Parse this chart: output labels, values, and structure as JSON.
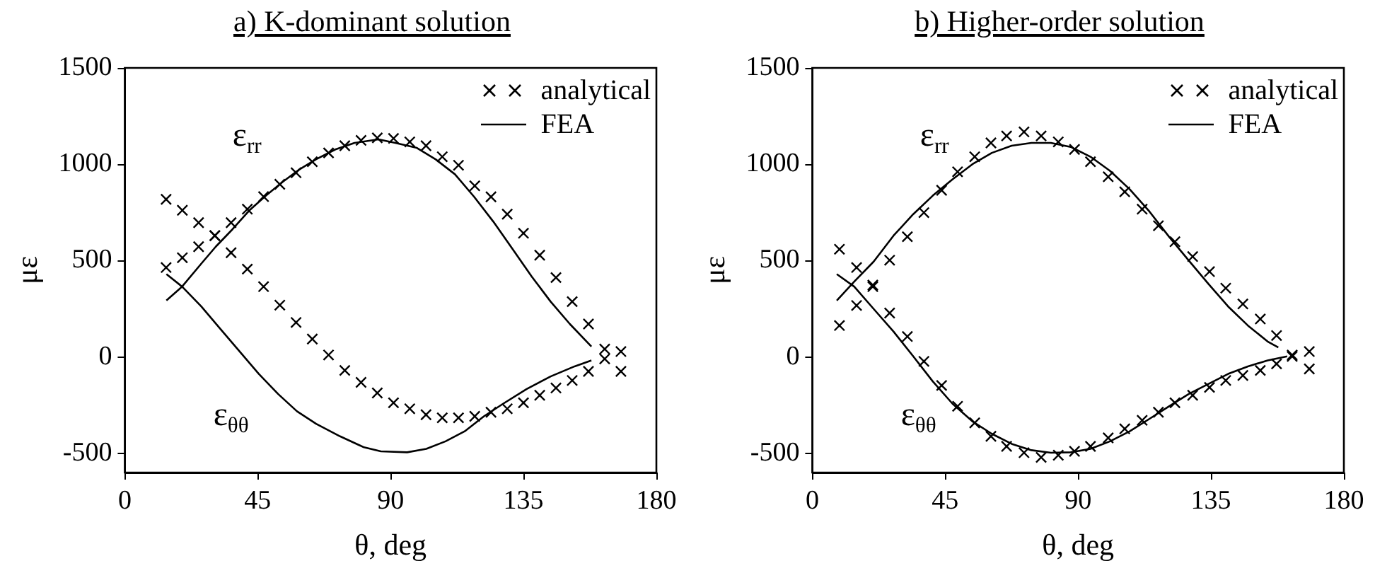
{
  "chart_data": [
    {
      "type": "line",
      "title": "a)  K-dominant solution",
      "xlabel": "θ, deg",
      "ylabel": "με",
      "xlim": [
        0,
        180
      ],
      "ylim": [
        -600,
        1500
      ],
      "xticks": [
        0,
        45,
        90,
        135,
        180
      ],
      "yticks": [
        -500,
        0,
        500,
        1000,
        1500
      ],
      "grid": false,
      "legend": "top right",
      "annotations": [
        "ε$_{rr}$",
        "ε$_{θθ}$"
      ],
      "series": [
        {
          "name": "analytical",
          "type": "scatter",
          "marker": "cross",
          "color": "#000000",
          "x": [
            14,
            19.5,
            25,
            30.5,
            36,
            41.5,
            47,
            52.5,
            58,
            63.5,
            69,
            74.5,
            80,
            85.5,
            91,
            96.5,
            102,
            107.5,
            113,
            118.5,
            124,
            129.5,
            135,
            140.5,
            146,
            151.5,
            157,
            162.5,
            168
          ],
          "values": [
            464,
            515,
            572,
            629,
            697,
            767,
            832,
            896,
            956,
            1013,
            1059,
            1096,
            1124,
            1137,
            1134,
            1116,
            1096,
            1039,
            995,
            888,
            831,
            741,
            642,
            528,
            412,
            287,
            171,
            41,
            28
          ]
        },
        {
          "type": "scatter",
          "marker": "cross",
          "color": "#000000",
          "x": [
            14,
            19.5,
            25,
            30.5,
            36,
            41.5,
            47,
            52.5,
            58,
            63.5,
            69,
            74.5,
            80,
            85.5,
            91,
            96.5,
            102,
            107.5,
            113,
            118.5,
            124,
            129.5,
            135,
            140.5,
            146,
            151.5,
            157,
            162.5,
            168
          ],
          "values": [
            818,
            761,
            697,
            630,
            541,
            456,
            365,
            269,
            179,
            93,
            10,
            -70,
            -132,
            -187,
            -238,
            -269,
            -300,
            -316,
            -316,
            -308,
            -287,
            -269,
            -238,
            -199,
            -161,
            -122,
            -75,
            -10,
            -75
          ]
        },
        {
          "name": "FEA",
          "marker": "none",
          "line_style": "solid",
          "color": "#000000",
          "x": [
            14.1,
            19.4,
            25.9,
            30.8,
            36.5,
            42.1,
            47.8,
            53.5,
            59.2,
            64.8,
            71.3,
            77.8,
            85.9,
            91.6,
            98.9,
            105.3,
            111.8,
            118.3,
            124.8,
            131.3,
            137.8,
            144.2,
            150.7,
            158
          ],
          "values": [
            293,
            365,
            484,
            572,
            663,
            759,
            837,
            909,
            974,
            1026,
            1077,
            1111,
            1129,
            1111,
            1085,
            1025,
            948,
            831,
            702,
            560,
            417,
            287,
            171,
            54
          ]
        },
        {
          "marker": "none",
          "line_style": "solid",
          "color": "#000000",
          "x": [
            14.1,
            19.4,
            25.9,
            32.4,
            38.9,
            45.4,
            51.9,
            58.3,
            64.8,
            72.9,
            81,
            86.7,
            95.6,
            102.1,
            108.6,
            115.1,
            121.6,
            128,
            136.1,
            144.2,
            152.3,
            158
          ],
          "values": [
            430,
            365,
            262,
            145,
            28,
            -88,
            -192,
            -282,
            -347,
            -412,
            -469,
            -490,
            -495,
            -477,
            -438,
            -386,
            -308,
            -244,
            -166,
            -101,
            -49,
            -18
          ]
        }
      ]
    },
    {
      "type": "line",
      "title": "b) Higher-order solution",
      "xlabel": "θ, deg",
      "ylabel": "με",
      "xlim": [
        0,
        180
      ],
      "ylim": [
        -600,
        1500
      ],
      "xticks": [
        0,
        45,
        90,
        135,
        180
      ],
      "yticks": [
        -500,
        0,
        500,
        1000,
        1500
      ],
      "grid": false,
      "legend": "top right",
      "annotations": [
        "ε$_{rr}$",
        "ε$_{θθ}$"
      ],
      "series": [
        {
          "name": "analytical",
          "type": "scatter",
          "marker": "cross",
          "color": "#000000",
          "x": [
            9.2,
            15,
            20.5,
            26.2,
            32.2,
            37.8,
            43.8,
            49.2,
            55,
            60.5,
            65.8,
            71.7,
            77.5,
            83.3,
            88.8,
            94.2,
            100.2,
            105.8,
            111.7,
            117.2,
            122.8,
            128.8,
            134.5,
            140,
            145.8,
            151.7,
            157.2,
            162.5,
            168.3
          ],
          "values": [
            163,
            267,
            365,
            502,
            624,
            749,
            865,
            961,
            1039,
            1111,
            1147,
            1168,
            1147,
            1116,
            1077,
            1013,
            935,
            857,
            767,
            681,
            598,
            521,
            443,
            357,
            275,
            197,
            111,
            10,
            28
          ]
        },
        {
          "type": "scatter",
          "marker": "cross",
          "color": "#000000",
          "x": [
            9.2,
            15,
            20.5,
            26.2,
            32.2,
            37.8,
            43.8,
            49.2,
            55,
            60.5,
            65.8,
            71.7,
            77.5,
            83.3,
            88.8,
            94.2,
            100.2,
            105.8,
            111.7,
            117.2,
            122.8,
            128.8,
            134.5,
            140,
            145.8,
            151.7,
            157.2,
            162.5,
            168.3
          ],
          "values": [
            559,
            464,
            373,
            228,
            106,
            -23,
            -148,
            -256,
            -342,
            -412,
            -464,
            -497,
            -521,
            -510,
            -490,
            -464,
            -420,
            -373,
            -329,
            -287,
            -238,
            -199,
            -158,
            -122,
            -96,
            -70,
            -36,
            3,
            -62
          ]
        },
        {
          "name": "FEA",
          "marker": "none",
          "line_style": "solid",
          "color": "#000000",
          "x": [
            8.3,
            14.2,
            20.8,
            27.5,
            34.2,
            40.8,
            47.5,
            54.2,
            60.8,
            67.5,
            74.2,
            80.8,
            87.5,
            94.2,
            100.8,
            107.5,
            114.2,
            120.8,
            127.5,
            134.2,
            140.8,
            147.5,
            154.2,
            157.8
          ],
          "values": [
            293,
            391,
            495,
            629,
            741,
            837,
            922,
            1000,
            1059,
            1096,
            1111,
            1111,
            1090,
            1039,
            966,
            870,
            754,
            624,
            500,
            378,
            262,
            163,
            80,
            49
          ]
        },
        {
          "marker": "none",
          "line_style": "solid",
          "color": "#000000",
          "x": [
            8.3,
            14.2,
            20.8,
            27.5,
            34.2,
            40.8,
            47.5,
            54.2,
            60.8,
            67.5,
            74.2,
            80.8,
            87.5,
            94.2,
            100.8,
            107.5,
            114.2,
            120.8,
            127.5,
            134.2,
            140.8,
            147.5,
            154.2,
            160.8
          ],
          "values": [
            430,
            365,
            249,
            132,
            3,
            -127,
            -243,
            -334,
            -399,
            -451,
            -484,
            -497,
            -495,
            -477,
            -438,
            -386,
            -321,
            -256,
            -192,
            -140,
            -88,
            -49,
            -18,
            3
          ]
        }
      ]
    }
  ]
}
